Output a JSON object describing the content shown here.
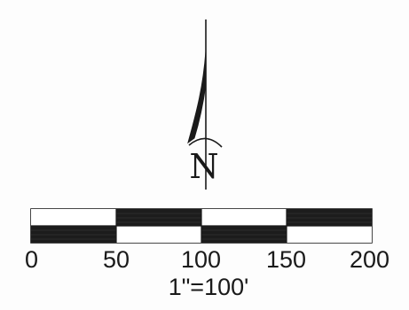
{
  "north_arrow": {
    "letter": "N",
    "icon": "north-arrow-icon"
  },
  "scale_bar": {
    "ticks": [
      "0",
      "50",
      "100",
      "150",
      "200"
    ],
    "ratio": "1\"=100'",
    "colors": {
      "dark": "#1c1c1c",
      "light": "#ffffff",
      "line": "#1a1a1a"
    }
  }
}
